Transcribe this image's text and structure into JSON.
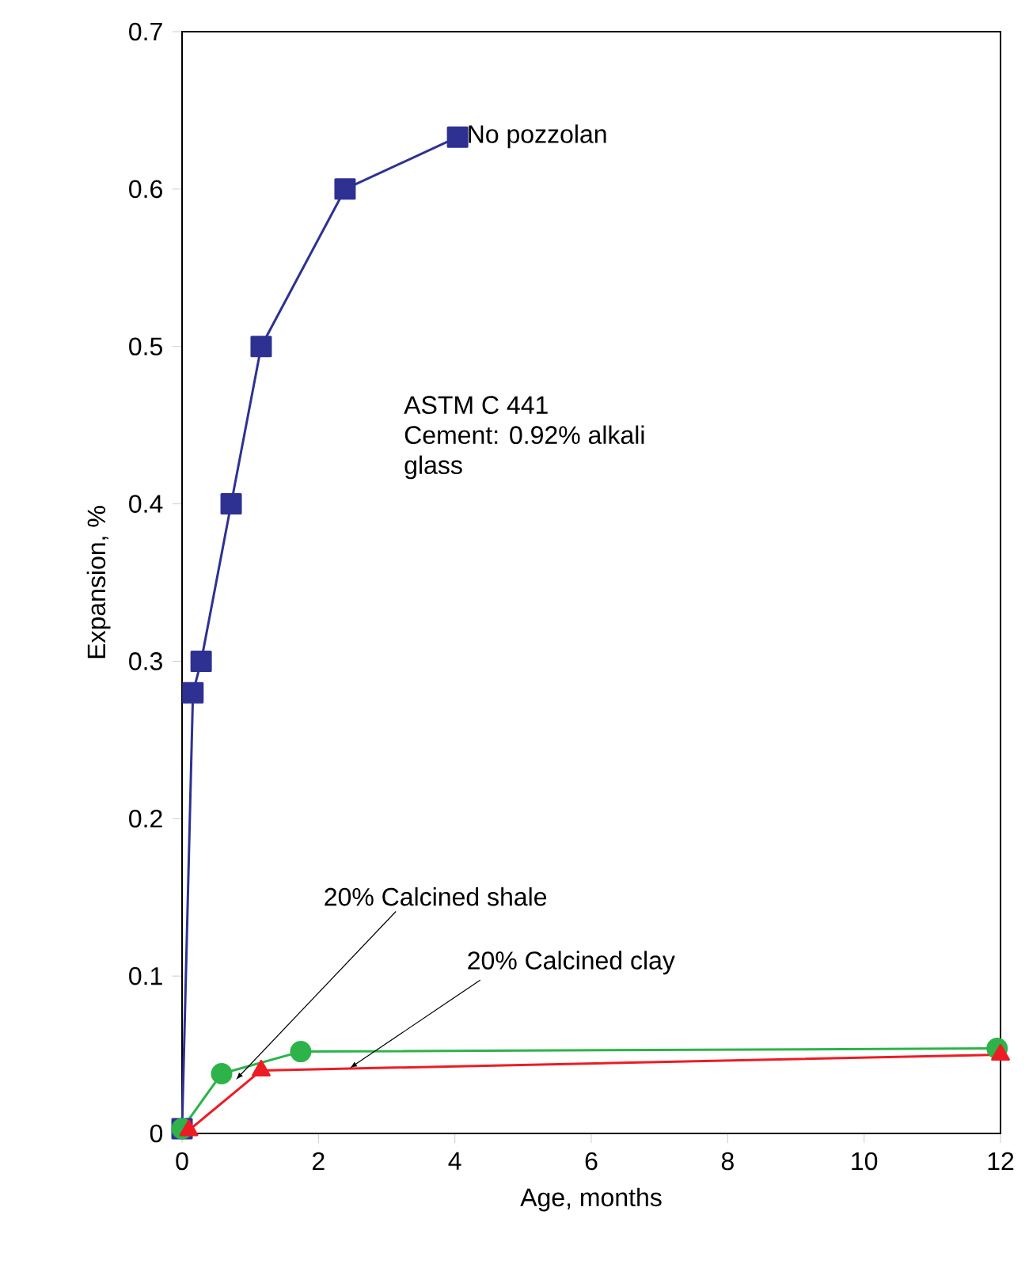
{
  "chart_data": {
    "type": "line",
    "xlabel": "Age, months",
    "ylabel": "Expansion, %",
    "xlim": [
      0,
      12
    ],
    "xticks": [
      0,
      2,
      4,
      6,
      8,
      10,
      12
    ],
    "ylim": [
      0,
      0.7
    ],
    "yticks": [
      0,
      0.1,
      0.2,
      0.3,
      0.4,
      0.5,
      0.6,
      0.7
    ],
    "series": [
      {
        "name": "No pozzolan",
        "color": "#2e3192",
        "marker": "square",
        "x": [
          0,
          0.16,
          0.28,
          0.72,
          1.16,
          2.39,
          4.04
        ],
        "values": [
          0.003,
          0.28,
          0.3,
          0.4,
          0.5,
          0.6,
          0.633
        ]
      },
      {
        "name": "20% Calcined shale",
        "color": "#2db34a",
        "marker": "circle",
        "x": [
          0,
          0.58,
          1.74,
          11.95
        ],
        "values": [
          0.003,
          0.038,
          0.052,
          0.054
        ]
      },
      {
        "name": "20% Calcined clay",
        "color": "#ed1c24",
        "marker": "triangle",
        "x": [
          0.1,
          1.16,
          12
        ],
        "values": [
          0.002,
          0.04,
          0.05
        ]
      }
    ],
    "annotations": [
      "ASTM C 441",
      "Cement: 0.92% alkali",
      "glass"
    ],
    "grid": false,
    "legend": false
  }
}
